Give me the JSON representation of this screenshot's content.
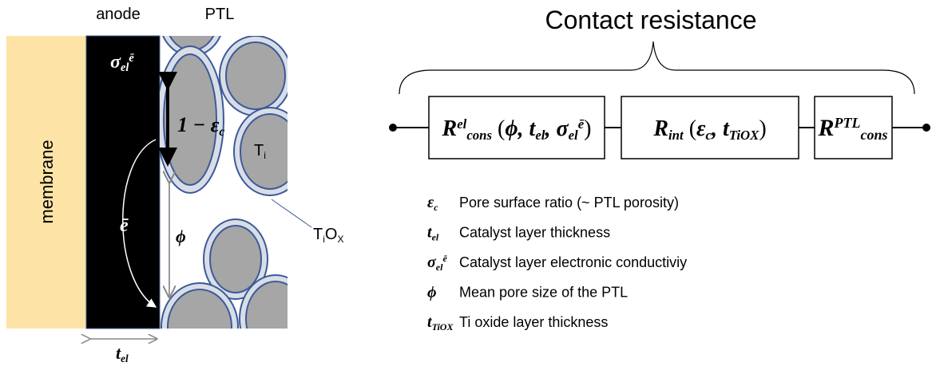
{
  "title": "Contact resistance",
  "labels": {
    "anode": "anode",
    "ptl": "PTL",
    "membrane": "membrane"
  },
  "symbols": {
    "sigma": [
      {
        "t": "σ",
        "s": "b"
      },
      {
        "t": "el",
        "s": "sub"
      },
      {
        "t": "ē",
        "s": "sup"
      }
    ],
    "e": [
      {
        "t": "ē",
        "s": "b"
      }
    ],
    "one_minus_eps": [
      {
        "t": "1 − ε",
        "s": "b"
      },
      {
        "t": "c",
        "s": "sub"
      }
    ],
    "phi": [
      {
        "t": "ϕ",
        "s": "b"
      }
    ],
    "ti": [
      {
        "t": "T",
        "s": "n"
      },
      {
        "t": "i",
        "s": "sub"
      }
    ],
    "tiox": [
      {
        "t": "T",
        "s": "n"
      },
      {
        "t": "i",
        "s": "sub"
      },
      {
        "t": "O",
        "s": "n"
      },
      {
        "t": "X",
        "s": "sub"
      }
    ],
    "t_el": [
      {
        "t": "t",
        "s": "b"
      },
      {
        "t": "el",
        "s": "sub"
      }
    ]
  },
  "circuit": [
    [
      {
        "t": "R",
        "s": "b"
      },
      {
        "t": "el",
        "s": "sup"
      },
      {
        "t": "cons",
        "s": "sub"
      },
      {
        "t": " (",
        "s": "n"
      },
      {
        "t": "ϕ, t",
        "s": "b"
      },
      {
        "t": "el",
        "s": "sub"
      },
      {
        "t": ", σ",
        "s": "b"
      },
      {
        "t": "el",
        "s": "sub"
      },
      {
        "t": "ē",
        "s": "sup"
      },
      {
        "t": ")",
        "s": "n"
      }
    ],
    [
      {
        "t": "R",
        "s": "b"
      },
      {
        "t": "int",
        "s": "sub"
      },
      {
        "t": " (",
        "s": "n"
      },
      {
        "t": "ε",
        "s": "b"
      },
      {
        "t": "c",
        "s": "sub"
      },
      {
        "t": ", t",
        "s": "b"
      },
      {
        "t": "TiOX",
        "s": "sub"
      },
      {
        "t": ")",
        "s": "n"
      }
    ],
    [
      {
        "t": "R",
        "s": "b"
      },
      {
        "t": "PTL",
        "s": "sup"
      },
      {
        "t": "cons",
        "s": "sub"
      }
    ]
  ],
  "legend": [
    {
      "symbol": [
        {
          "t": "ε",
          "s": "b"
        },
        {
          "t": "c",
          "s": "sub"
        }
      ],
      "text": "Pore surface ratio (~ PTL porosity)"
    },
    {
      "symbol": [
        {
          "t": "t",
          "s": "b"
        },
        {
          "t": "el",
          "s": "sub"
        }
      ],
      "text": "Catalyst layer thickness"
    },
    {
      "symbol": [
        {
          "t": "σ",
          "s": "b"
        },
        {
          "t": "el",
          "s": "sub"
        },
        {
          "t": "ē",
          "s": "sup"
        }
      ],
      "text": "Catalyst layer electronic conductiviy"
    },
    {
      "symbol": [
        {
          "t": "ϕ",
          "s": "b"
        }
      ],
      "text": "Mean pore size of the PTL"
    },
    {
      "symbol": [
        {
          "t": "t",
          "s": "b"
        },
        {
          "t": "TiOX",
          "s": "sub"
        }
      ],
      "text": "Ti oxide layer thickness"
    }
  ]
}
